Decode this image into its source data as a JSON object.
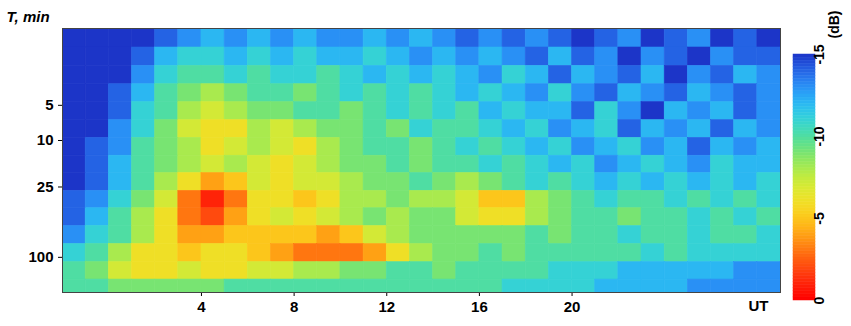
{
  "chart_data": {
    "type": "heatmap",
    "y_label": "T, min",
    "x_label": "UT",
    "log": "y",
    "xlim": [
      -2,
      29
    ],
    "ylim": [
      1.1,
      200
    ],
    "xticks": [
      4,
      8,
      12,
      16,
      20
    ],
    "yticks": [
      5,
      10,
      25,
      100
    ],
    "x_edges": [
      -2,
      -1,
      0,
      1,
      2,
      3,
      4,
      5,
      6,
      7,
      8,
      9,
      10,
      11,
      12,
      13,
      14,
      15,
      16,
      17,
      18,
      19,
      20,
      21,
      22,
      23,
      24,
      25,
      26,
      27,
      28,
      29
    ],
    "y_edges": [
      1.1,
      1.6,
      2.3,
      3.3,
      4.7,
      6.7,
      9.5,
      13.5,
      19,
      27,
      38,
      54,
      77,
      110,
      155,
      200
    ],
    "values": [
      [
        -15,
        -15,
        -15,
        -15,
        -14,
        -13,
        -12,
        -13,
        -12,
        -13,
        -12,
        -13,
        -13,
        -12,
        -13,
        -12,
        -13,
        -14,
        -13,
        -14,
        -13,
        -14,
        -15,
        -14,
        -13,
        -15,
        -14,
        -13,
        -15,
        -14,
        -15
      ],
      [
        -15,
        -15,
        -15,
        -14,
        -12,
        -11,
        -11,
        -12,
        -11,
        -12,
        -11,
        -12,
        -12,
        -11,
        -12,
        -13,
        -12,
        -13,
        -12,
        -13,
        -14,
        -12,
        -14,
        -13,
        -15,
        -13,
        -14,
        -15,
        -13,
        -14,
        -14
      ],
      [
        -15,
        -15,
        -15,
        -13,
        -11,
        -10,
        -10,
        -11,
        -10,
        -11,
        -11,
        -10,
        -11,
        -12,
        -11,
        -12,
        -11,
        -12,
        -13,
        -11,
        -12,
        -14,
        -12,
        -13,
        -14,
        -12,
        -15,
        -13,
        -14,
        -12,
        -13
      ],
      [
        -15,
        -15,
        -14,
        -12,
        -10,
        -9,
        -8,
        -9,
        -10,
        -10,
        -9,
        -10,
        -11,
        -10,
        -11,
        -10,
        -11,
        -12,
        -11,
        -12,
        -13,
        -11,
        -13,
        -14,
        -12,
        -13,
        -14,
        -12,
        -13,
        -14,
        -13
      ],
      [
        -15,
        -15,
        -14,
        -11,
        -10,
        -8,
        -7,
        -8,
        -9,
        -9,
        -10,
        -10,
        -9,
        -10,
        -11,
        -10,
        -11,
        -10,
        -12,
        -11,
        -12,
        -12,
        -14,
        -11,
        -13,
        -15,
        -12,
        -13,
        -12,
        -14,
        -13
      ],
      [
        -15,
        -15,
        -13,
        -11,
        -9,
        -7,
        -6,
        -6,
        -8,
        -7,
        -8,
        -9,
        -9,
        -10,
        -9,
        -11,
        -10,
        -10,
        -11,
        -12,
        -11,
        -13,
        -12,
        -11,
        -14,
        -12,
        -13,
        -12,
        -14,
        -12,
        -13
      ],
      [
        -15,
        -14,
        -13,
        -10,
        -9,
        -8,
        -6,
        -7,
        -8,
        -7,
        -6,
        -8,
        -9,
        -10,
        -10,
        -9,
        -10,
        -11,
        -10,
        -11,
        -12,
        -11,
        -13,
        -12,
        -11,
        -13,
        -12,
        -14,
        -12,
        -13,
        -12
      ],
      [
        -15,
        -14,
        -12,
        -10,
        -9,
        -8,
        -7,
        -8,
        -7,
        -6,
        -7,
        -8,
        -9,
        -9,
        -10,
        -9,
        -10,
        -10,
        -11,
        -10,
        -11,
        -12,
        -11,
        -13,
        -12,
        -11,
        -12,
        -13,
        -11,
        -12,
        -12
      ],
      [
        -15,
        -14,
        -12,
        -10,
        -8,
        -6,
        -4,
        -5,
        -7,
        -6,
        -7,
        -7,
        -8,
        -9,
        -9,
        -10,
        -9,
        -8,
        -9,
        -10,
        -11,
        -10,
        -11,
        -12,
        -11,
        -12,
        -11,
        -12,
        -11,
        -12,
        -11
      ],
      [
        -14,
        -13,
        -11,
        -9,
        -7,
        -3,
        -1,
        -3,
        -6,
        -6,
        -5,
        -6,
        -8,
        -8,
        -9,
        -8,
        -8,
        -7,
        -5,
        -5,
        -8,
        -9,
        -10,
        -11,
        -10,
        -10,
        -11,
        -10,
        -11,
        -10,
        -11
      ],
      [
        -14,
        -12,
        -10,
        -8,
        -6,
        -3,
        -2,
        -4,
        -6,
        -7,
        -6,
        -7,
        -8,
        -9,
        -8,
        -9,
        -9,
        -7,
        -6,
        -6,
        -8,
        -9,
        -10,
        -10,
        -9,
        -10,
        -10,
        -11,
        -10,
        -11,
        -10
      ],
      [
        -13,
        -11,
        -10,
        -8,
        -6,
        -4,
        -4,
        -5,
        -5,
        -5,
        -5,
        -4,
        -5,
        -7,
        -8,
        -9,
        -9,
        -9,
        -9,
        -9,
        -10,
        -9,
        -10,
        -10,
        -11,
        -10,
        -10,
        -11,
        -10,
        -10,
        -11
      ],
      [
        -11,
        -10,
        -8,
        -6,
        -6,
        -5,
        -6,
        -6,
        -5,
        -4,
        -3,
        -3,
        -3,
        -4,
        -6,
        -8,
        -9,
        -9,
        -10,
        -9,
        -10,
        -10,
        -10,
        -10,
        -10,
        -11,
        -10,
        -11,
        -11,
        -11,
        -11
      ],
      [
        -10,
        -9,
        -7,
        -6,
        -6,
        -7,
        -6,
        -6,
        -7,
        -7,
        -8,
        -8,
        -9,
        -9,
        -10,
        -10,
        -9,
        -10,
        -10,
        -10,
        -10,
        -11,
        -11,
        -11,
        -12,
        -12,
        -12,
        -12,
        -12,
        -13,
        -13
      ],
      [
        -10,
        -10,
        -9,
        -9,
        -9,
        -9,
        -9,
        -10,
        -10,
        -10,
        -10,
        -10,
        -10,
        -10,
        -10,
        -10,
        -10,
        -10,
        -10,
        -11,
        -11,
        -11,
        -11,
        -12,
        -12,
        -12,
        -12,
        -13,
        -13,
        -13,
        -13
      ]
    ],
    "colorbar": {
      "label": "(dB)",
      "range": [
        -15,
        0
      ],
      "ticks": [
        -15,
        -10,
        -5,
        0
      ]
    }
  }
}
